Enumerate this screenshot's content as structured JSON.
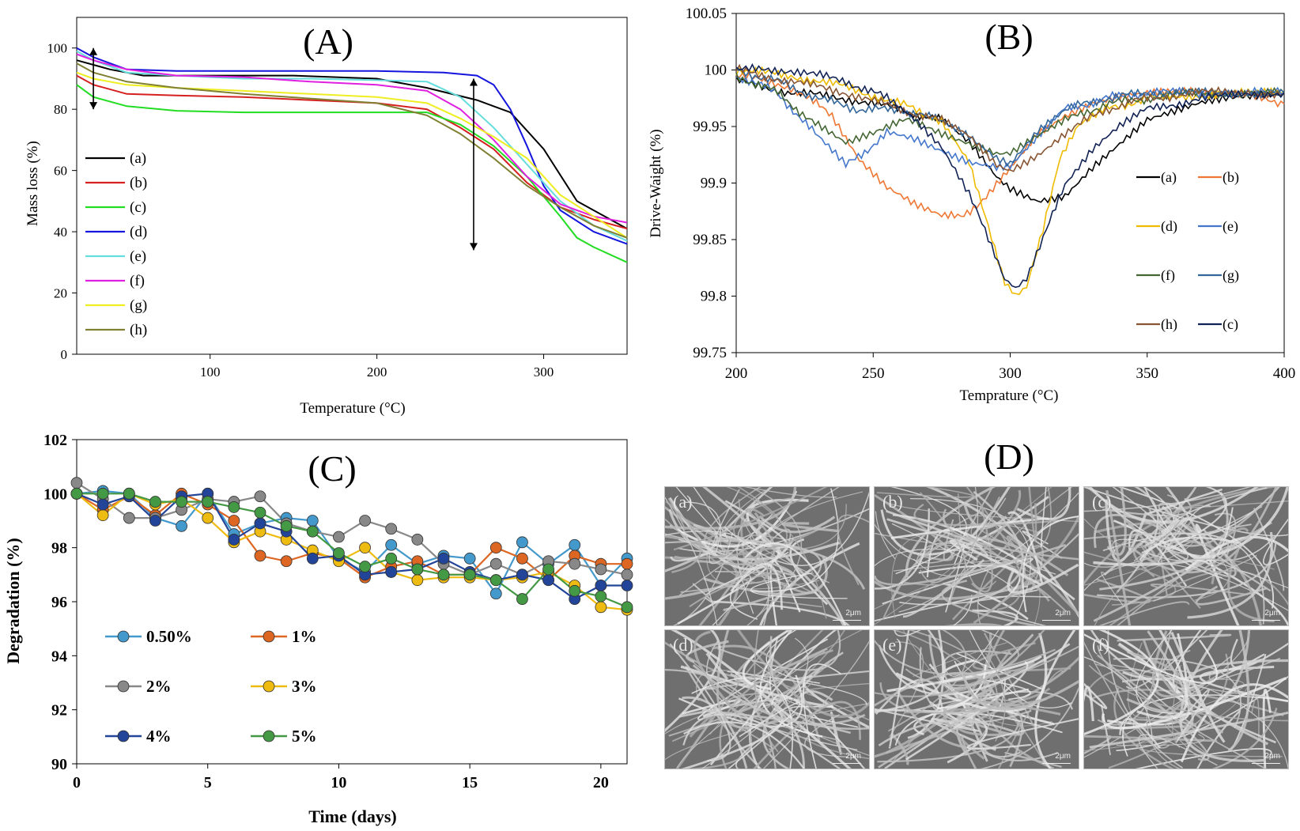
{
  "panels": {
    "A": "(A)",
    "B": "(B)",
    "C": "(C)",
    "D": "(D)"
  },
  "chart_data": [
    {
      "id": "A",
      "type": "line",
      "title": "(A)",
      "xlabel": "Temperature (°C)",
      "ylabel": "Mass loss (%)",
      "xlim": [
        20,
        350
      ],
      "ylim": [
        0,
        110
      ],
      "xticks": [
        100,
        200,
        300
      ],
      "yticks": [
        0,
        20,
        40,
        60,
        80,
        100
      ],
      "legend": "left",
      "series": [
        {
          "name": "(a)",
          "color": "#000000",
          "x": [
            20,
            40,
            60,
            100,
            150,
            200,
            230,
            260,
            280,
            300,
            320,
            340,
            350
          ],
          "y": [
            96,
            93,
            91,
            91,
            91,
            90,
            87,
            83,
            79,
            67,
            50,
            44,
            41
          ]
        },
        {
          "name": "(b)",
          "color": "#d62020",
          "x": [
            20,
            30,
            50,
            80,
            120,
            160,
            200,
            230,
            250,
            270,
            290,
            310,
            330,
            350
          ],
          "y": [
            91,
            88,
            85,
            84.5,
            84,
            83,
            82,
            80,
            74,
            67,
            56,
            48,
            44,
            41
          ]
        },
        {
          "name": "(c)",
          "color": "#22dd22",
          "x": [
            20,
            30,
            50,
            80,
            120,
            160,
            200,
            230,
            250,
            270,
            290,
            310,
            320,
            330,
            350
          ],
          "y": [
            88,
            84,
            81,
            79.5,
            79,
            79,
            79,
            79,
            75,
            68,
            58,
            45,
            38,
            35,
            30
          ]
        },
        {
          "name": "(d)",
          "color": "#1515dd",
          "x": [
            20,
            30,
            50,
            80,
            120,
            160,
            200,
            240,
            260,
            270,
            280,
            290,
            300,
            310,
            330,
            350
          ],
          "y": [
            100,
            97,
            93,
            92.5,
            92.5,
            92.5,
            92.5,
            92,
            91,
            88,
            80,
            68,
            55,
            47,
            40,
            36
          ]
        },
        {
          "name": "(e)",
          "color": "#66dddd",
          "x": [
            20,
            30,
            50,
            80,
            120,
            160,
            200,
            230,
            250,
            270,
            290,
            310,
            330,
            350
          ],
          "y": [
            99,
            96,
            92,
            91,
            90,
            90,
            89.5,
            89,
            84,
            74,
            62,
            50,
            42,
            37
          ]
        },
        {
          "name": "(f)",
          "color": "#e020e0",
          "x": [
            20,
            30,
            50,
            80,
            120,
            160,
            200,
            230,
            250,
            270,
            290,
            310,
            330,
            350
          ],
          "y": [
            98,
            96,
            93,
            91,
            90.5,
            89,
            88,
            86,
            80,
            70,
            58,
            49,
            45,
            43
          ]
        },
        {
          "name": "(g)",
          "color": "#eeee22",
          "x": [
            20,
            30,
            50,
            80,
            120,
            160,
            200,
            230,
            250,
            270,
            290,
            310,
            330,
            350
          ],
          "y": [
            92,
            90,
            88,
            87,
            86,
            85,
            84,
            82,
            77,
            71,
            64,
            52,
            45,
            38
          ]
        },
        {
          "name": "(h)",
          "color": "#808033",
          "x": [
            20,
            30,
            50,
            80,
            120,
            160,
            200,
            230,
            250,
            270,
            290,
            310,
            330,
            350
          ],
          "y": [
            95,
            92,
            89,
            87,
            85,
            83.5,
            82,
            78,
            72,
            64,
            55,
            48,
            42,
            38
          ]
        }
      ],
      "annotations": [
        {
          "type": "double-arrow",
          "x": 30,
          "y1": 80,
          "y2": 100
        },
        {
          "type": "double-arrow",
          "x": 258,
          "y1": 34,
          "y2": 90
        }
      ]
    },
    {
      "id": "B",
      "type": "line",
      "title": "(B)",
      "xlabel": "Temprature (°C)",
      "ylabel": "Drive-Waight (%)",
      "xlim": [
        200,
        400
      ],
      "ylim": [
        99.75,
        100.05
      ],
      "xticks": [
        200,
        250,
        300,
        350,
        400
      ],
      "yticks": [
        99.75,
        99.8,
        99.85,
        99.9,
        99.95,
        100,
        100.05
      ],
      "ytick_labels": [
        "99.75",
        "99.8",
        "99.85",
        "99.9",
        "99.95",
        "100",
        "100.05"
      ],
      "legend": "right",
      "legend_order": [
        "(a)",
        "(b)",
        "(d)",
        "(e)",
        "(f)",
        "(g)",
        "(h)",
        "(c)"
      ],
      "series": [
        {
          "name": "(a)",
          "color": "#000000",
          "x": [
            200,
            220,
            240,
            260,
            275,
            285,
            295,
            300,
            305,
            310,
            320,
            330,
            340,
            350,
            360,
            370,
            380,
            390,
            400
          ],
          "y": [
            99.99,
            99.98,
            99.975,
            99.965,
            99.955,
            99.935,
            99.905,
            99.895,
            99.89,
            99.885,
            99.89,
            99.915,
            99.935,
            99.955,
            99.962,
            99.97,
            99.975,
            99.978,
            99.98
          ]
        },
        {
          "name": "(b)",
          "color": "#ee7733",
          "x": [
            200,
            220,
            235,
            245,
            255,
            265,
            275,
            282,
            290,
            300,
            310,
            320,
            330,
            340,
            350,
            360,
            380,
            400
          ],
          "y": [
            99.995,
            99.985,
            99.96,
            99.92,
            99.895,
            99.88,
            99.87,
            99.87,
            99.885,
            99.915,
            99.945,
            99.96,
            99.97,
            99.975,
            99.978,
            99.98,
            99.98,
            99.97
          ]
        },
        {
          "name": "(d)",
          "color": "#eebb00",
          "x": [
            200,
            220,
            240,
            260,
            275,
            285,
            292,
            298,
            302,
            306,
            312,
            318,
            325,
            335,
            350,
            370,
            400
          ],
          "y": [
            100.0,
            99.995,
            99.985,
            99.97,
            99.955,
            99.92,
            99.86,
            99.81,
            99.8,
            99.81,
            99.86,
            99.92,
            99.95,
            99.965,
            99.975,
            99.978,
            99.98
          ]
        },
        {
          "name": "(e)",
          "color": "#4477cc",
          "x": [
            200,
            215,
            230,
            240,
            248,
            255,
            265,
            275,
            285,
            295,
            300,
            310,
            320,
            335,
            350,
            370,
            400
          ],
          "y": [
            99.995,
            99.98,
            99.94,
            99.915,
            99.93,
            99.945,
            99.94,
            99.93,
            99.92,
            99.915,
            99.915,
            99.94,
            99.965,
            99.975,
            99.98,
            99.98,
            99.98
          ]
        },
        {
          "name": "(f)",
          "color": "#446633",
          "x": [
            200,
            215,
            230,
            240,
            250,
            262,
            275,
            285,
            295,
            300,
            310,
            320,
            335,
            350,
            370,
            400
          ],
          "y": [
            99.995,
            99.98,
            99.95,
            99.935,
            99.945,
            99.955,
            99.945,
            99.935,
            99.925,
            99.925,
            99.94,
            99.955,
            99.97,
            99.975,
            99.98,
            99.98
          ]
        },
        {
          "name": "(g)",
          "color": "#336699",
          "x": [
            200,
            215,
            230,
            245,
            260,
            275,
            285,
            295,
            300,
            310,
            320,
            335,
            350,
            370,
            400
          ],
          "y": [
            100.0,
            99.99,
            99.975,
            99.965,
            99.965,
            99.955,
            99.94,
            99.92,
            99.915,
            99.945,
            99.965,
            99.975,
            99.98,
            99.98,
            99.98
          ]
        },
        {
          "name": "(h)",
          "color": "#885533",
          "x": [
            200,
            220,
            240,
            260,
            275,
            285,
            295,
            300,
            310,
            320,
            335,
            350,
            370,
            400
          ],
          "y": [
            100.0,
            99.99,
            99.98,
            99.965,
            99.955,
            99.94,
            99.915,
            99.91,
            99.925,
            99.945,
            99.965,
            99.975,
            99.98,
            99.98
          ]
        },
        {
          "name": "(c)",
          "color": "#112255",
          "x": [
            200,
            220,
            240,
            255,
            265,
            275,
            285,
            292,
            298,
            302,
            306,
            312,
            320,
            330,
            340,
            350,
            370,
            400
          ],
          "y": [
            100.0,
            100.0,
            99.99,
            99.975,
            99.955,
            99.93,
            99.89,
            99.85,
            99.815,
            99.805,
            99.815,
            99.85,
            99.9,
            99.93,
            99.95,
            99.965,
            99.975,
            99.98
          ]
        }
      ]
    },
    {
      "id": "C",
      "type": "line",
      "title": "(C)",
      "xlabel": "Time (days)",
      "ylabel": "Degradation (%)",
      "xlim": [
        0,
        21
      ],
      "ylim": [
        90,
        102
      ],
      "xticks": [
        0,
        5,
        10,
        15,
        20
      ],
      "yticks": [
        90,
        92,
        94,
        96,
        98,
        100,
        102
      ],
      "legend": "bottom-left",
      "x": [
        0,
        1,
        2,
        3,
        4,
        5,
        6,
        7,
        8,
        9,
        10,
        11,
        12,
        13,
        14,
        15,
        16,
        17,
        18,
        19,
        20,
        21
      ],
      "series": [
        {
          "name": "0.50%",
          "color": "#4499cc",
          "values": [
            100.0,
            100.1,
            100.0,
            99.1,
            98.8,
            100.0,
            98.5,
            98.9,
            99.1,
            99.0,
            97.6,
            97.1,
            98.1,
            97.4,
            97.7,
            97.6,
            96.3,
            98.2,
            97.4,
            98.1,
            96.6,
            97.6
          ]
        },
        {
          "name": "1%",
          "color": "#dd6622",
          "values": [
            100.0,
            99.4,
            99.9,
            99.2,
            100.0,
            99.6,
            99.0,
            97.7,
            97.5,
            97.8,
            97.6,
            96.9,
            97.3,
            97.5,
            97.0,
            97.0,
            98.0,
            97.6,
            96.8,
            97.7,
            97.4,
            97.4
          ]
        },
        {
          "name": "2%",
          "color": "#888888",
          "values": [
            100.4,
            99.8,
            99.1,
            99.1,
            99.4,
            99.8,
            99.7,
            99.9,
            98.9,
            98.6,
            98.4,
            99.0,
            98.7,
            98.3,
            97.4,
            97.0,
            97.4,
            97.0,
            97.5,
            97.4,
            97.2,
            97.0
          ]
        },
        {
          "name": "3%",
          "color": "#eebb11",
          "values": [
            100.0,
            99.2,
            100.0,
            99.6,
            99.8,
            99.1,
            98.2,
            98.6,
            98.3,
            97.9,
            97.5,
            98.0,
            97.1,
            96.8,
            96.9,
            96.9,
            96.8,
            96.9,
            97.1,
            96.6,
            95.8,
            95.7
          ]
        },
        {
          "name": "4%",
          "color": "#224499",
          "values": [
            100.0,
            99.6,
            99.9,
            99.0,
            99.9,
            100.0,
            98.3,
            98.9,
            98.6,
            97.6,
            97.7,
            97.0,
            97.1,
            97.2,
            97.6,
            97.1,
            96.8,
            97.0,
            96.8,
            96.1,
            96.6,
            96.6
          ]
        },
        {
          "name": "5%",
          "color": "#449944",
          "values": [
            100.0,
            100.0,
            100.0,
            99.7,
            99.7,
            99.7,
            99.5,
            99.3,
            98.8,
            98.6,
            97.8,
            97.3,
            97.6,
            97.2,
            97.0,
            97.0,
            96.8,
            96.1,
            97.2,
            96.4,
            96.2,
            95.8
          ]
        }
      ]
    }
  ],
  "sem": {
    "scale_label": "2μm",
    "images": [
      "(a)",
      "(b)",
      "(c)",
      "(d)",
      "(e)",
      "(f)"
    ]
  }
}
